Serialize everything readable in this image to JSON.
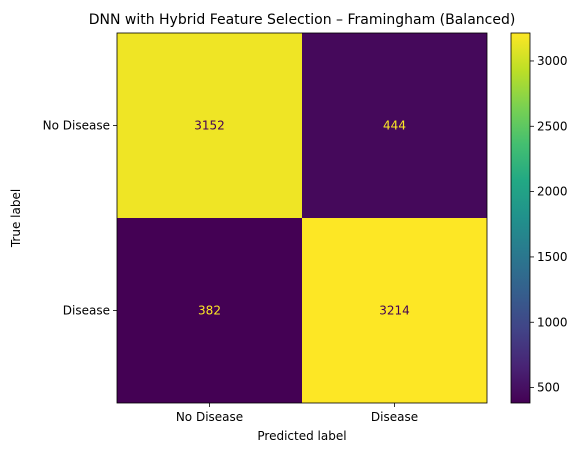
{
  "chart_data": {
    "type": "heatmap",
    "title": "DNN with Hybrid Feature Selection – Framingham (Balanced)",
    "xlabel": "Predicted label",
    "ylabel": "True label",
    "x_categories": [
      "No Disease",
      "Disease"
    ],
    "y_categories": [
      "No Disease",
      "Disease"
    ],
    "matrix": [
      [
        3152,
        444
      ],
      [
        382,
        3214
      ]
    ],
    "colormap": "viridis",
    "colorbar": {
      "min": 382,
      "max": 3214,
      "ticks": [
        500,
        1000,
        1500,
        2000,
        2500,
        3000
      ],
      "tick_labels": [
        "500",
        "1000",
        "1500",
        "2000",
        "2500",
        "3000"
      ]
    },
    "grid": false
  },
  "colors": {
    "low_cell": "#440154",
    "high_cell": "#fde725",
    "text_on_dark": "#fde725",
    "text_on_light": "#440154"
  }
}
